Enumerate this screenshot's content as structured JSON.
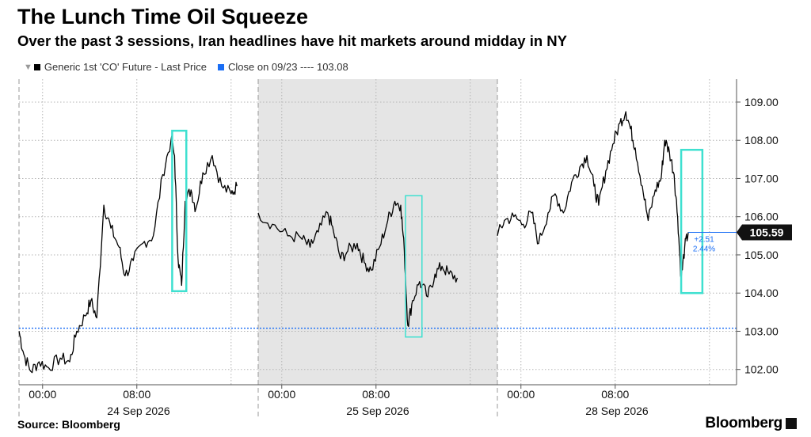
{
  "title": "The Lunch Time Oil Squeeze",
  "subtitle": "Over the past 3 sessions, Iran headlines have hit markets around midday in NY",
  "legend": {
    "series_label": "Generic 1st 'CO' Future - Last Price",
    "ref_label": "Close on 09/23 ---- 103.08"
  },
  "source": "Source: Bloomberg",
  "brand": "Bloomberg",
  "colors": {
    "price": "#000000",
    "reference": "#1a6ef5",
    "highlight": "#3fe0d0",
    "shaded": "#e5e5e5",
    "grid": "#b5b5b5"
  },
  "chart_data": {
    "type": "line",
    "ylim": [
      101.6,
      109.6
    ],
    "y_ticks": [
      102.0,
      103.0,
      104.0,
      105.0,
      106.0,
      107.0,
      108.0,
      109.0
    ],
    "y_tick_labels": [
      "102.00",
      "103.00",
      "104.00",
      "105.00",
      "106.00",
      "107.00",
      "108.00",
      "109.00"
    ],
    "reference_line": {
      "label": "Close on 09/23",
      "value": 103.08
    },
    "last_value_label": "105.59",
    "last_value": 105.59,
    "change_annotation": [
      "+2.51",
      "2.44%"
    ],
    "sessions": [
      {
        "date_label": "24 Sep 2026",
        "hours_span": 20.3,
        "shaded": false,
        "time_ticks": [
          {
            "h": 0,
            "label": "00:00"
          },
          {
            "h": 8,
            "label": "08:00"
          }
        ]
      },
      {
        "date_label": "25 Sep 2026",
        "hours_span": 20.3,
        "shaded": true,
        "time_ticks": [
          {
            "h": 0,
            "label": "00:00"
          },
          {
            "h": 8,
            "label": "08:00"
          }
        ]
      },
      {
        "date_label": "28 Sep 2026",
        "hours_span": 20.3,
        "shaded": false,
        "time_ticks": [
          {
            "h": 0,
            "label": "00:00"
          },
          {
            "h": 8,
            "label": "08:00"
          }
        ]
      }
    ],
    "series": [
      {
        "name": "Generic 1st 'CO' Future - Last Price",
        "points": [
          {
            "session": 0,
            "h": -2.0,
            "v": 103.0
          },
          {
            "session": 0,
            "h": -1.6,
            "v": 102.4
          },
          {
            "session": 0,
            "h": -1.0,
            "v": 101.95
          },
          {
            "session": 0,
            "h": -0.3,
            "v": 102.2
          },
          {
            "session": 0,
            "h": 0.5,
            "v": 102.05
          },
          {
            "session": 0,
            "h": 1.5,
            "v": 102.3
          },
          {
            "session": 0,
            "h": 2.3,
            "v": 102.2
          },
          {
            "session": 0,
            "h": 2.9,
            "v": 103.0
          },
          {
            "session": 0,
            "h": 3.6,
            "v": 103.4
          },
          {
            "session": 0,
            "h": 4.1,
            "v": 103.8
          },
          {
            "session": 0,
            "h": 4.6,
            "v": 103.35
          },
          {
            "session": 0,
            "h": 5.2,
            "v": 106.3
          },
          {
            "session": 0,
            "h": 5.8,
            "v": 105.7
          },
          {
            "session": 0,
            "h": 6.5,
            "v": 105.2
          },
          {
            "session": 0,
            "h": 7.0,
            "v": 104.45
          },
          {
            "session": 0,
            "h": 7.7,
            "v": 104.85
          },
          {
            "session": 0,
            "h": 8.5,
            "v": 105.3
          },
          {
            "session": 0,
            "h": 9.4,
            "v": 105.5
          },
          {
            "session": 0,
            "h": 10.2,
            "v": 107.1
          },
          {
            "session": 0,
            "h": 10.9,
            "v": 108.0
          },
          {
            "session": 0,
            "h": 11.2,
            "v": 107.6
          },
          {
            "session": 0,
            "h": 11.5,
            "v": 104.9
          },
          {
            "session": 0,
            "h": 11.8,
            "v": 104.2
          },
          {
            "session": 0,
            "h": 12.1,
            "v": 106.4
          },
          {
            "session": 0,
            "h": 12.6,
            "v": 106.7
          },
          {
            "session": 0,
            "h": 13.0,
            "v": 106.2
          },
          {
            "session": 0,
            "h": 13.6,
            "v": 107.15
          },
          {
            "session": 0,
            "h": 14.4,
            "v": 107.6
          },
          {
            "session": 0,
            "h": 15.2,
            "v": 106.8
          },
          {
            "session": 0,
            "h": 16.0,
            "v": 106.6
          },
          {
            "session": 0,
            "h": 16.5,
            "v": 106.8
          },
          {
            "session": 1,
            "h": -2.0,
            "v": 106.1
          },
          {
            "session": 1,
            "h": -0.8,
            "v": 105.8
          },
          {
            "session": 1,
            "h": 0.5,
            "v": 105.5
          },
          {
            "session": 1,
            "h": 1.6,
            "v": 105.45
          },
          {
            "session": 1,
            "h": 2.4,
            "v": 105.2
          },
          {
            "session": 1,
            "h": 3.1,
            "v": 105.6
          },
          {
            "session": 1,
            "h": 3.9,
            "v": 106.1
          },
          {
            "session": 1,
            "h": 4.4,
            "v": 105.6
          },
          {
            "session": 1,
            "h": 5.0,
            "v": 104.9
          },
          {
            "session": 1,
            "h": 5.6,
            "v": 105.1
          },
          {
            "session": 1,
            "h": 6.4,
            "v": 105.3
          },
          {
            "session": 1,
            "h": 7.0,
            "v": 104.8
          },
          {
            "session": 1,
            "h": 7.6,
            "v": 104.6
          },
          {
            "session": 1,
            "h": 8.3,
            "v": 105.2
          },
          {
            "session": 1,
            "h": 9.0,
            "v": 105.9
          },
          {
            "session": 1,
            "h": 9.6,
            "v": 106.4
          },
          {
            "session": 1,
            "h": 10.1,
            "v": 106.3
          },
          {
            "session": 1,
            "h": 10.4,
            "v": 105.1
          },
          {
            "session": 1,
            "h": 10.7,
            "v": 103.15
          },
          {
            "session": 1,
            "h": 11.1,
            "v": 103.8
          },
          {
            "session": 1,
            "h": 11.7,
            "v": 104.3
          },
          {
            "session": 1,
            "h": 12.4,
            "v": 103.9
          },
          {
            "session": 1,
            "h": 13.0,
            "v": 104.5
          },
          {
            "session": 1,
            "h": 13.6,
            "v": 104.7
          },
          {
            "session": 1,
            "h": 14.2,
            "v": 104.5
          },
          {
            "session": 1,
            "h": 14.9,
            "v": 104.4
          },
          {
            "session": 2,
            "h": -2.0,
            "v": 105.5
          },
          {
            "session": 2,
            "h": -1.4,
            "v": 105.9
          },
          {
            "session": 2,
            "h": -0.6,
            "v": 106.0
          },
          {
            "session": 2,
            "h": 0.2,
            "v": 105.8
          },
          {
            "session": 2,
            "h": 0.9,
            "v": 106.1
          },
          {
            "session": 2,
            "h": 1.5,
            "v": 105.3
          },
          {
            "session": 2,
            "h": 2.3,
            "v": 106.1
          },
          {
            "session": 2,
            "h": 2.9,
            "v": 106.6
          },
          {
            "session": 2,
            "h": 3.6,
            "v": 106.1
          },
          {
            "session": 2,
            "h": 4.3,
            "v": 106.9
          },
          {
            "session": 2,
            "h": 5.0,
            "v": 107.3
          },
          {
            "session": 2,
            "h": 5.6,
            "v": 107.6
          },
          {
            "session": 2,
            "h": 6.2,
            "v": 106.8
          },
          {
            "session": 2,
            "h": 6.6,
            "v": 106.3
          },
          {
            "session": 2,
            "h": 7.2,
            "v": 107.2
          },
          {
            "session": 2,
            "h": 7.8,
            "v": 107.9
          },
          {
            "session": 2,
            "h": 8.4,
            "v": 108.45
          },
          {
            "session": 2,
            "h": 8.9,
            "v": 108.75
          },
          {
            "session": 2,
            "h": 9.3,
            "v": 108.3
          },
          {
            "session": 2,
            "h": 9.7,
            "v": 107.8
          },
          {
            "session": 2,
            "h": 10.3,
            "v": 106.8
          },
          {
            "session": 2,
            "h": 10.8,
            "v": 105.9
          },
          {
            "session": 2,
            "h": 11.4,
            "v": 106.7
          },
          {
            "session": 2,
            "h": 11.9,
            "v": 107.0
          },
          {
            "session": 2,
            "h": 12.2,
            "v": 108.0
          },
          {
            "session": 2,
            "h": 12.6,
            "v": 107.7
          },
          {
            "session": 2,
            "h": 13.0,
            "v": 107.1
          },
          {
            "session": 2,
            "h": 13.3,
            "v": 106.0
          },
          {
            "session": 2,
            "h": 13.6,
            "v": 104.35
          },
          {
            "session": 2,
            "h": 13.9,
            "v": 105.2
          },
          {
            "session": 2,
            "h": 14.2,
            "v": 105.59
          }
        ]
      }
    ],
    "highlight_boxes": [
      {
        "session": 0,
        "h0": 11.0,
        "h1": 12.2,
        "v0": 104.05,
        "v1": 108.25
      },
      {
        "session": 1,
        "h0": 10.5,
        "h1": 11.9,
        "v0": 102.85,
        "v1": 106.55
      },
      {
        "session": 2,
        "h0": 13.6,
        "h1": 15.4,
        "v0": 104.0,
        "v1": 107.75
      }
    ]
  }
}
